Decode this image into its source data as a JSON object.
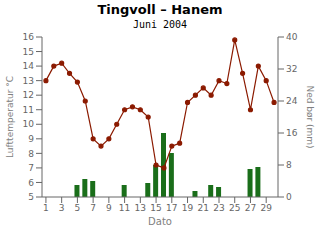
{
  "chart_data": {
    "type": "line",
    "title": "Tingvoll – Hanem",
    "subtitle": "Juni 2004",
    "x_label": "Dato",
    "y_label": "Lufttemperatur °C",
    "y2_label": "Ned bør (mm)",
    "x": [
      1,
      2,
      3,
      4,
      5,
      6,
      7,
      8,
      9,
      10,
      11,
      12,
      13,
      14,
      15,
      16,
      17,
      18,
      19,
      20,
      21,
      22,
      23,
      24,
      25,
      26,
      27,
      28,
      29,
      30
    ],
    "series": [
      {
        "type": "bar",
        "axis": "y2",
        "color": "#1a6e1a",
        "values": [
          0.0,
          0.0,
          0.0,
          0.0,
          3.0,
          4.5,
          4.0,
          0.0,
          0.0,
          0.0,
          3.0,
          0.0,
          0.0,
          3.5,
          8.0,
          16.0,
          11.0,
          0.0,
          0.0,
          1.5,
          0.0,
          3.0,
          2.5,
          0.0,
          0.0,
          0.0,
          7.0,
          7.5,
          0.0,
          0.0
        ]
      },
      {
        "color": "#8b1a00",
        "marker": "circle",
        "values": [
          13.0,
          14.0,
          14.2,
          13.5,
          12.9,
          11.6,
          9.0,
          8.5,
          9.0,
          10.0,
          11.0,
          11.2,
          11.0,
          10.5,
          7.2,
          7.0,
          8.5,
          8.7,
          11.5,
          12.0,
          12.5,
          12.0,
          13.0,
          12.8,
          15.8,
          13.5,
          11.0,
          14.0,
          13.0,
          11.5
        ]
      }
    ],
    "xlim": [
      0.5,
      30.5
    ],
    "xticks": [
      1,
      3,
      5,
      7,
      9,
      11,
      13,
      15,
      17,
      19,
      21,
      23,
      25,
      27,
      29
    ],
    "ylim": [
      5,
      16
    ],
    "yticks": [
      5,
      6,
      7,
      8,
      9,
      10,
      11,
      12,
      13,
      14,
      15,
      16
    ],
    "y2lim": [
      0,
      40
    ],
    "y2ticks": [
      0,
      8,
      16,
      24,
      32,
      40
    ],
    "grid": false
  }
}
